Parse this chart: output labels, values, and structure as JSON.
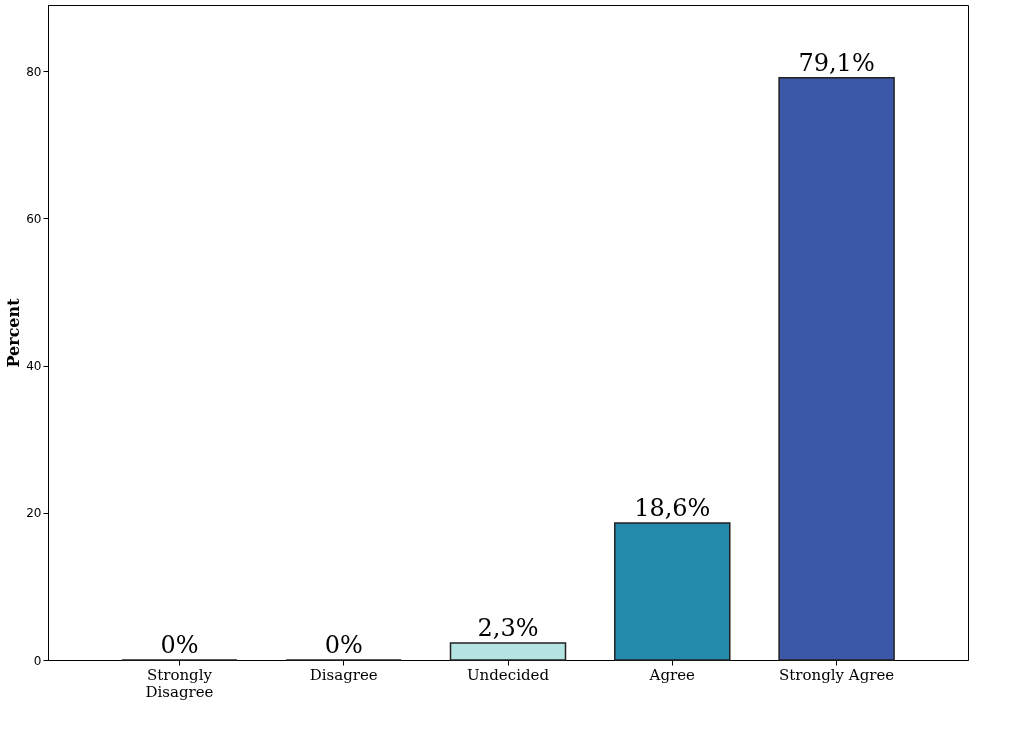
{
  "chart_data": {
    "type": "bar",
    "ylabel": "Percent",
    "categories": [
      "Strongly Disagree",
      "Disagree",
      "Undecided",
      "Agree",
      "Strongly Agree"
    ],
    "values": [
      0,
      0,
      2.3,
      18.6,
      79.1
    ],
    "colors": [
      "#222222",
      "#222222",
      "#b4e4e4",
      "#2489ab",
      "#3d57a8"
    ],
    "value_labels": [
      "0%",
      "0%",
      "2,3%",
      "18,6%",
      "79,1%"
    ],
    "ylim": [
      0,
      89
    ],
    "yticks": [
      0,
      20,
      40,
      60,
      80
    ],
    "grid": false
  }
}
